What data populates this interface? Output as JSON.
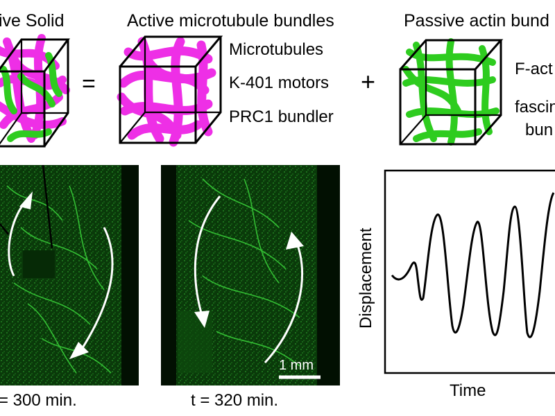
{
  "headers": {
    "solid": "ive Solid",
    "microtubule": "Active microtubule bundles",
    "actin": "Passive actin bund"
  },
  "operators": {
    "equals": "=",
    "plus": "+"
  },
  "microtubule_components": [
    "Microtubules",
    "K-401 motors",
    "PRC1 bundler"
  ],
  "actin_components": {
    "factin": "F-act",
    "fascin_1": "fascin",
    "fascin_2": "bun"
  },
  "micrographs": {
    "left_time": "= 300 min.",
    "right_time": "t = 320 min.",
    "scale_bar": "1 mm"
  },
  "plot": {
    "xlabel": "Time",
    "ylabel": "Displacement"
  },
  "colors": {
    "microtubule": "#ee2fe6",
    "actin": "#2ecc1f",
    "micrograph_bg": "#041a04",
    "micrograph_fiber": "#3bd63b"
  }
}
